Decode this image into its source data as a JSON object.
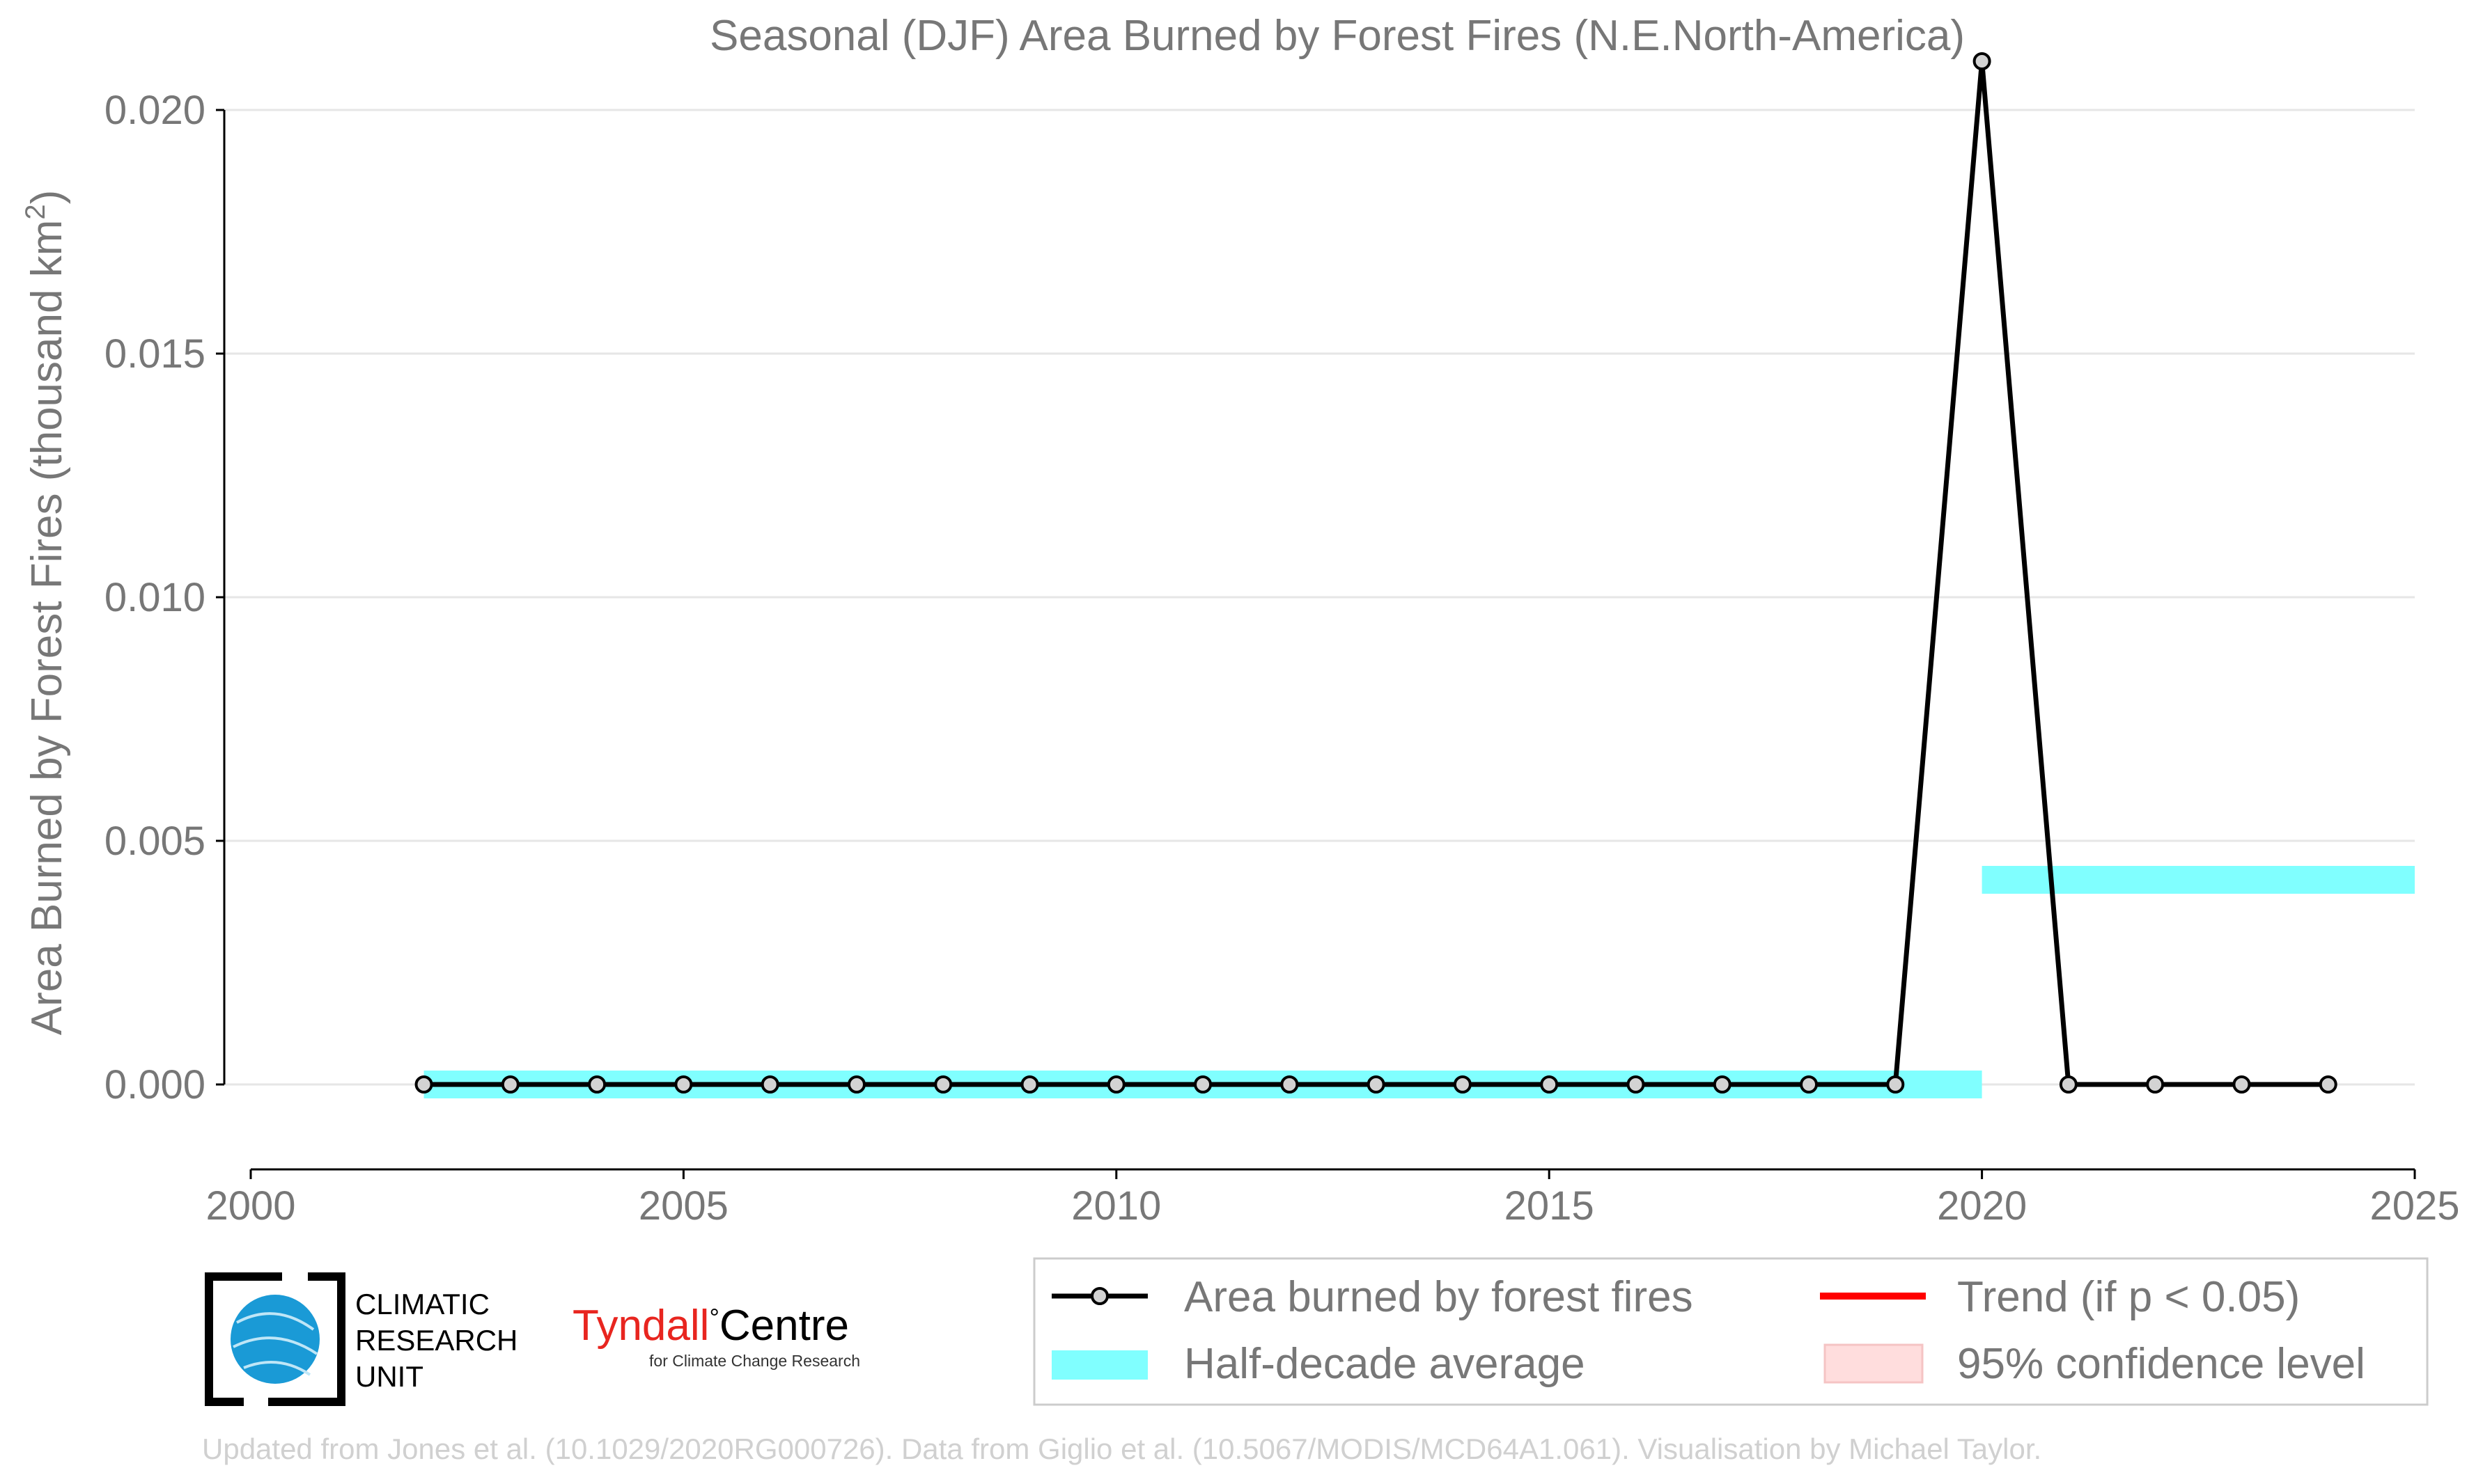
{
  "chart_data": {
    "type": "line",
    "title": "Seasonal (DJF) Area Burned by Forest Fires (N.E.North-America)",
    "ylabel": "Area Burned by Forest Fires (thousand km",
    "ylabel_sup": "2",
    "ylabel_close": ")",
    "xlim": [
      2000,
      2025
    ],
    "ylim": [
      -0.0016,
      0.0214
    ],
    "x_ticks": [
      2000,
      2005,
      2010,
      2015,
      2020,
      2025
    ],
    "x_tick_labels": [
      "2000",
      "2005",
      "2010",
      "2015",
      "2020",
      "2025"
    ],
    "y_ticks": [
      0.0,
      0.005,
      0.01,
      0.015,
      0.02
    ],
    "y_tick_labels": [
      "0.000",
      "0.005",
      "0.010",
      "0.015",
      "0.020"
    ],
    "grid": "horizontal",
    "legend_placement": "bottom-right",
    "series": [
      {
        "name": "Area burned by forest fires",
        "color": "#000000",
        "marker_fill": "#d3d3d3",
        "x": [
          2002,
          2003,
          2004,
          2005,
          2006,
          2007,
          2008,
          2009,
          2010,
          2011,
          2012,
          2013,
          2014,
          2015,
          2016,
          2017,
          2018,
          2019,
          2020,
          2021,
          2022,
          2023,
          2024
        ],
        "y": [
          0,
          0,
          0,
          0,
          0,
          0,
          0,
          0,
          0,
          0,
          0,
          0,
          0,
          0,
          0,
          0,
          0,
          0,
          0.021,
          0,
          0,
          0,
          0
        ]
      },
      {
        "name": "Half-decade average",
        "color": "#80ffff",
        "segments": [
          {
            "x": [
              2002,
              2020
            ],
            "y": 0.0
          },
          {
            "x": [
              2020,
              2025
            ],
            "y": 0.0042
          }
        ]
      }
    ],
    "legend": [
      {
        "label": "Area burned by forest fires",
        "kind": "line-marker",
        "color": "#000000"
      },
      {
        "label": "Trend (if p < 0.05)",
        "kind": "line",
        "color": "#ff0000"
      },
      {
        "label": "Half-decade average",
        "kind": "band",
        "color": "#80ffff"
      },
      {
        "label": "95% confidence level",
        "kind": "patch",
        "color": "#ffdddd"
      }
    ]
  },
  "logos": {
    "cru_line1": "CLIMATIC",
    "cru_line2": "RESEARCH",
    "cru_line3": "UNIT",
    "tyndall_name": "Tyndall",
    "tyndall_deg": "°",
    "tyndall_centre": "Centre",
    "tyndall_sub": "for Climate Change Research"
  },
  "credit": "Updated from Jones et al. (10.1029/2020RG000726). Data from Giglio et al. (10.5067/MODIS/MCD64A1.061). Visualisation by Michael Taylor."
}
